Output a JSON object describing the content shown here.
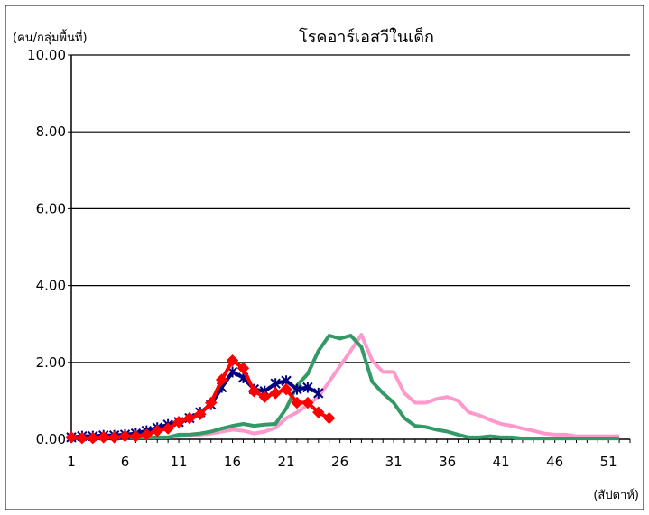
{
  "chart_data": {
    "type": "line",
    "title": "โรคอาร์เอสวีในเด็ก",
    "ylabel": "(คน/กลุ่มพื้นที่)",
    "xlabel": "(สัปดาห์)",
    "xlim": [
      1,
      53
    ],
    "ylim": [
      0,
      10
    ],
    "x_ticks": [
      1,
      6,
      11,
      16,
      21,
      26,
      31,
      36,
      41,
      46,
      51
    ],
    "y_ticks": [
      "0.00",
      "2.00",
      "4.00",
      "6.00",
      "8.00",
      "10.00"
    ],
    "y_tick_values": [
      0,
      2,
      4,
      6,
      8,
      10
    ],
    "grid": true,
    "legend": "none",
    "series": [
      {
        "color": "#ff99cc",
        "marker": "none",
        "x": [
          1,
          2,
          3,
          4,
          5,
          6,
          7,
          8,
          9,
          10,
          11,
          12,
          13,
          14,
          15,
          16,
          17,
          18,
          19,
          20,
          21,
          22,
          23,
          24,
          25,
          26,
          27,
          28,
          29,
          30,
          31,
          32,
          33,
          34,
          35,
          36,
          37,
          38,
          39,
          40,
          41,
          42,
          43,
          44,
          45,
          46,
          47,
          48,
          49,
          50,
          51,
          52
        ],
        "values": [
          0.05,
          0.05,
          0.05,
          0.05,
          0.05,
          0.05,
          0.05,
          0.05,
          0.05,
          0.05,
          0.08,
          0.1,
          0.12,
          0.15,
          0.2,
          0.25,
          0.22,
          0.15,
          0.2,
          0.3,
          0.55,
          0.7,
          0.9,
          1.1,
          1.5,
          1.9,
          2.3,
          2.72,
          2.05,
          1.75,
          1.75,
          1.2,
          0.95,
          0.95,
          1.05,
          1.1,
          1.0,
          0.7,
          0.62,
          0.5,
          0.4,
          0.35,
          0.28,
          0.22,
          0.15,
          0.12,
          0.12,
          0.08,
          0.08,
          0.08,
          0.08,
          0.08
        ]
      },
      {
        "color": "#339966",
        "marker": "none",
        "x": [
          1,
          2,
          3,
          4,
          5,
          6,
          7,
          8,
          9,
          10,
          11,
          12,
          13,
          14,
          15,
          16,
          17,
          18,
          19,
          20,
          21,
          22,
          23,
          24,
          25,
          26,
          27,
          28,
          29,
          30,
          31,
          32,
          33,
          34,
          35,
          36,
          37,
          38,
          39,
          40,
          41,
          42,
          43,
          44,
          45,
          46,
          47,
          48,
          49,
          50,
          51,
          52
        ],
        "values": [
          0.05,
          0.05,
          0.05,
          0.05,
          0.05,
          0.05,
          0.05,
          0.05,
          0.05,
          0.05,
          0.12,
          0.12,
          0.15,
          0.2,
          0.28,
          0.35,
          0.4,
          0.35,
          0.38,
          0.4,
          0.8,
          1.4,
          1.7,
          2.3,
          2.7,
          2.62,
          2.7,
          2.4,
          1.5,
          1.2,
          0.95,
          0.55,
          0.35,
          0.32,
          0.25,
          0.2,
          0.12,
          0.05,
          0.05,
          0.08,
          0.05,
          0.05,
          0.02,
          0.02,
          0.02,
          0.02,
          0.02,
          0.02,
          0.02,
          0.02,
          0.02,
          0.02
        ]
      },
      {
        "color": "#000080",
        "marker": "star",
        "x": [
          1,
          2,
          3,
          4,
          5,
          6,
          7,
          8,
          9,
          10,
          11,
          12,
          13,
          14,
          15,
          16,
          17,
          18,
          19,
          20,
          21,
          22,
          23,
          24
        ],
        "values": [
          0.05,
          0.08,
          0.08,
          0.1,
          0.1,
          0.12,
          0.15,
          0.22,
          0.3,
          0.38,
          0.45,
          0.55,
          0.7,
          0.9,
          1.35,
          1.75,
          1.6,
          1.3,
          1.25,
          1.45,
          1.52,
          1.3,
          1.35,
          1.2
        ]
      },
      {
        "color": "#ff0000",
        "marker": "diamond",
        "x": [
          1,
          2,
          3,
          4,
          5,
          6,
          7,
          8,
          9,
          10,
          11,
          12,
          13,
          14,
          15,
          16,
          17,
          18,
          19,
          20,
          21,
          22,
          23,
          24,
          25
        ],
        "values": [
          0.05,
          0.03,
          0.03,
          0.05,
          0.05,
          0.08,
          0.08,
          0.12,
          0.22,
          0.28,
          0.45,
          0.55,
          0.65,
          0.95,
          1.55,
          2.05,
          1.85,
          1.25,
          1.1,
          1.2,
          1.3,
          0.95,
          0.95,
          0.7,
          0.55
        ]
      }
    ]
  }
}
